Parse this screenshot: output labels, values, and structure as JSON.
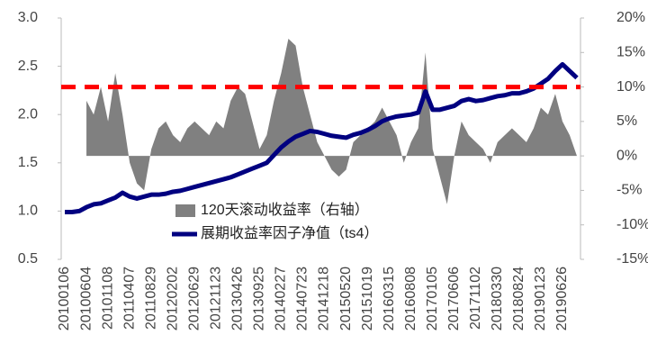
{
  "chart_data": {
    "type": "combo",
    "categories": [
      "20100106",
      null,
      null,
      "20100604",
      null,
      null,
      "20101108",
      null,
      null,
      "20110407",
      null,
      null,
      "20110829",
      null,
      null,
      "20120202",
      null,
      null,
      "20120629",
      null,
      null,
      "20121123",
      null,
      null,
      "20130426",
      null,
      null,
      "20130925",
      null,
      null,
      "20140227",
      null,
      null,
      "20140723",
      null,
      null,
      "20141218",
      null,
      null,
      "20150520",
      null,
      null,
      "20151019",
      null,
      null,
      "20160315",
      null,
      null,
      "20160808",
      null,
      null,
      "20170105",
      null,
      null,
      "20170606",
      null,
      null,
      "20171102",
      null,
      null,
      "20180330",
      null,
      null,
      "20180824",
      null,
      null,
      "20190123",
      null,
      null,
      "20190626",
      null,
      null
    ],
    "series": [
      {
        "name": "120天滚动收益率（右轴）",
        "type": "area",
        "axis": "y2",
        "color": "#808080",
        "values": [
          null,
          null,
          null,
          8,
          6,
          10,
          5,
          12,
          6,
          -1,
          -4,
          -5,
          1,
          4,
          5,
          3,
          2,
          4,
          5,
          4,
          3,
          5,
          4,
          8,
          10,
          9,
          5,
          1,
          3,
          8,
          12,
          17,
          16,
          10,
          6,
          2,
          0,
          -2,
          -3,
          -2,
          2,
          3,
          4,
          5,
          7,
          5,
          3,
          -1,
          2,
          4,
          15,
          1,
          -3,
          -7,
          0,
          5,
          3,
          2,
          1,
          -1,
          2,
          3,
          4,
          3,
          2,
          4,
          7,
          6,
          9,
          5,
          3,
          0
        ]
      },
      {
        "name": "展期收益率因子净值（ts4）",
        "type": "line",
        "color": "#000080",
        "values": [
          0.99,
          0.99,
          1.0,
          1.04,
          1.07,
          1.08,
          1.11,
          1.14,
          1.19,
          1.15,
          1.13,
          1.15,
          1.17,
          1.17,
          1.18,
          1.2,
          1.21,
          1.23,
          1.25,
          1.27,
          1.29,
          1.31,
          1.33,
          1.35,
          1.38,
          1.41,
          1.44,
          1.47,
          1.5,
          1.58,
          1.66,
          1.72,
          1.77,
          1.8,
          1.83,
          1.82,
          1.8,
          1.78,
          1.77,
          1.76,
          1.79,
          1.81,
          1.84,
          1.88,
          1.93,
          1.96,
          1.98,
          1.99,
          2.0,
          2.02,
          2.24,
          2.05,
          2.05,
          2.07,
          2.09,
          2.14,
          2.16,
          2.14,
          2.15,
          2.17,
          2.19,
          2.2,
          2.22,
          2.22,
          2.24,
          2.27,
          2.32,
          2.37,
          2.45,
          2.52,
          2.45,
          2.38
        ]
      }
    ],
    "ylim": [
      0.5,
      3.0
    ],
    "yticks": [
      0.5,
      {
        "value": 1,
        "label": "1.0"
      },
      1.5,
      {
        "value": 2,
        "label": "2.0"
      },
      2.5,
      {
        "value": 3,
        "label": "3.0"
      }
    ],
    "y2lim": [
      -15,
      20
    ],
    "y2ticks": [
      {
        "value": -15,
        "label": "-15%"
      },
      {
        "value": -10,
        "label": "-10%"
      },
      {
        "value": -5,
        "label": "-5%"
      },
      {
        "value": 0,
        "label": "0%"
      },
      {
        "value": 5,
        "label": "5%"
      },
      {
        "value": 10,
        "label": "10%"
      },
      {
        "value": 15,
        "label": "15%"
      },
      {
        "value": 20,
        "label": "20%"
      }
    ],
    "reference_lines": [
      {
        "axis": "y2",
        "value": 10,
        "color": "#ff0000",
        "style": "dashed"
      }
    ],
    "legend": "lower center",
    "grid": false
  }
}
